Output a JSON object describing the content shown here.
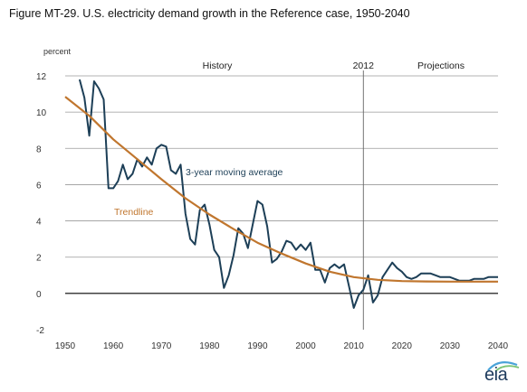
{
  "title": "Figure MT-29. U.S. electricity demand growth in the Reference case, 1950-2040",
  "logo_text": "eia",
  "colors": {
    "moving_average": "#1d3f57",
    "trendline": "#c0762e",
    "grid": "#9a9a9a",
    "axis": "#000000",
    "divider": "#666666"
  },
  "chart_data": {
    "type": "line",
    "ylabel": "percent",
    "xlim": [
      1950,
      2040
    ],
    "ylim": [
      -2,
      12
    ],
    "x_ticks": [
      1950,
      1960,
      1970,
      1980,
      1990,
      2000,
      2010,
      2020,
      2030,
      2040
    ],
    "y_ticks": [
      -2,
      0,
      2,
      4,
      6,
      8,
      10,
      12
    ],
    "grid": "horizontal",
    "divider_year": 2012,
    "annotations": {
      "history": "History",
      "divider": "2012",
      "projections": "Projections"
    },
    "series": [
      {
        "name": "3-year moving average",
        "color": "#1d3f57",
        "points": [
          [
            1953,
            11.8
          ],
          [
            1954,
            10.8
          ],
          [
            1955,
            8.7
          ],
          [
            1956,
            11.7
          ],
          [
            1957,
            11.3
          ],
          [
            1958,
            10.7
          ],
          [
            1959,
            5.8
          ],
          [
            1960,
            5.8
          ],
          [
            1961,
            6.2
          ],
          [
            1962,
            7.1
          ],
          [
            1963,
            6.3
          ],
          [
            1964,
            6.6
          ],
          [
            1965,
            7.4
          ],
          [
            1966,
            7.0
          ],
          [
            1967,
            7.5
          ],
          [
            1968,
            7.1
          ],
          [
            1969,
            8.0
          ],
          [
            1970,
            8.2
          ],
          [
            1971,
            8.1
          ],
          [
            1972,
            6.8
          ],
          [
            1973,
            6.6
          ],
          [
            1974,
            7.1
          ],
          [
            1975,
            4.4
          ],
          [
            1976,
            3.0
          ],
          [
            1977,
            2.7
          ],
          [
            1978,
            4.6
          ],
          [
            1979,
            4.9
          ],
          [
            1980,
            3.8
          ],
          [
            1981,
            2.4
          ],
          [
            1982,
            2.0
          ],
          [
            1983,
            0.3
          ],
          [
            1984,
            1.0
          ],
          [
            1985,
            2.1
          ],
          [
            1986,
            3.6
          ],
          [
            1987,
            3.3
          ],
          [
            1988,
            2.5
          ],
          [
            1989,
            3.8
          ],
          [
            1990,
            5.1
          ],
          [
            1991,
            4.9
          ],
          [
            1992,
            3.7
          ],
          [
            1993,
            1.7
          ],
          [
            1994,
            1.9
          ],
          [
            1995,
            2.3
          ],
          [
            1996,
            2.9
          ],
          [
            1997,
            2.8
          ],
          [
            1998,
            2.4
          ],
          [
            1999,
            2.7
          ],
          [
            2000,
            2.4
          ],
          [
            2001,
            2.8
          ],
          [
            2002,
            1.3
          ],
          [
            2003,
            1.3
          ],
          [
            2004,
            0.6
          ],
          [
            2005,
            1.4
          ],
          [
            2006,
            1.6
          ],
          [
            2007,
            1.4
          ],
          [
            2008,
            1.6
          ],
          [
            2009,
            0.4
          ],
          [
            2010,
            -0.8
          ],
          [
            2011,
            -0.1
          ],
          [
            2012,
            0.2
          ],
          [
            2013,
            1.0
          ],
          [
            2014,
            -0.5
          ],
          [
            2015,
            -0.1
          ],
          [
            2016,
            0.9
          ],
          [
            2017,
            1.3
          ],
          [
            2018,
            1.7
          ],
          [
            2019,
            1.4
          ],
          [
            2020,
            1.2
          ],
          [
            2021,
            0.9
          ],
          [
            2022,
            0.8
          ],
          [
            2023,
            0.9
          ],
          [
            2024,
            1.1
          ],
          [
            2025,
            1.1
          ],
          [
            2026,
            1.1
          ],
          [
            2027,
            1.0
          ],
          [
            2028,
            0.9
          ],
          [
            2029,
            0.9
          ],
          [
            2030,
            0.9
          ],
          [
            2031,
            0.8
          ],
          [
            2032,
            0.7
          ],
          [
            2033,
            0.7
          ],
          [
            2034,
            0.7
          ],
          [
            2035,
            0.8
          ],
          [
            2036,
            0.8
          ],
          [
            2037,
            0.8
          ],
          [
            2038,
            0.9
          ],
          [
            2039,
            0.9
          ],
          [
            2040,
            0.9
          ]
        ]
      },
      {
        "name": "Trendline",
        "color": "#c0762e",
        "points": [
          [
            1950,
            10.85
          ],
          [
            1955,
            9.8
          ],
          [
            1960,
            8.5
          ],
          [
            1965,
            7.4
          ],
          [
            1970,
            6.3
          ],
          [
            1975,
            5.25
          ],
          [
            1980,
            4.35
          ],
          [
            1985,
            3.55
          ],
          [
            1990,
            2.8
          ],
          [
            1995,
            2.2
          ],
          [
            2000,
            1.65
          ],
          [
            2005,
            1.2
          ],
          [
            2010,
            0.9
          ],
          [
            2015,
            0.75
          ],
          [
            2020,
            0.68
          ],
          [
            2025,
            0.66
          ],
          [
            2030,
            0.65
          ],
          [
            2035,
            0.65
          ],
          [
            2040,
            0.65
          ]
        ]
      }
    ]
  }
}
